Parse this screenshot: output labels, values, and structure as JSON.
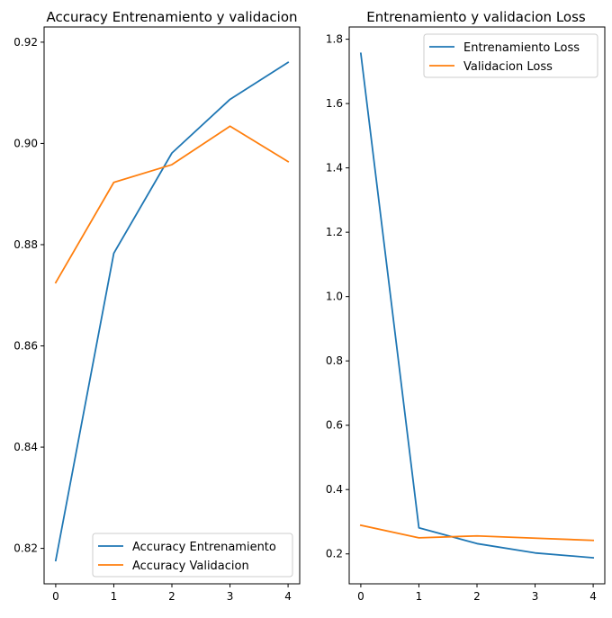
{
  "colors": {
    "series_1": "#1f77b4",
    "series_2": "#ff7f0e",
    "axis": "#000000",
    "legend_border": "#cccccc",
    "background": "#ffffff"
  },
  "chart_data": [
    {
      "type": "line",
      "title": "Accuracy Entrenamiento y validacion",
      "xlabel": "",
      "ylabel": "",
      "x": [
        0,
        1,
        2,
        3,
        4
      ],
      "xticks": [
        "0",
        "1",
        "2",
        "3",
        "4"
      ],
      "yticks": [
        "0.82",
        "0.84",
        "0.86",
        "0.88",
        "0.90",
        "0.92"
      ],
      "xlim": [
        -0.2,
        4.2
      ],
      "ylim": [
        0.813,
        0.923
      ],
      "grid": false,
      "legend_position": "lower-right",
      "series": [
        {
          "name": "Accuracy Entrenamiento",
          "values": [
            0.8176,
            0.8783,
            0.8981,
            0.9087,
            0.916
          ]
        },
        {
          "name": "Accuracy Validacion",
          "values": [
            0.8725,
            0.8923,
            0.8958,
            0.9034,
            0.8964
          ]
        }
      ]
    },
    {
      "type": "line",
      "title": "Entrenamiento y validacion Loss",
      "xlabel": "",
      "ylabel": "",
      "x": [
        0,
        1,
        2,
        3,
        4
      ],
      "xticks": [
        "0",
        "1",
        "2",
        "3",
        "4"
      ],
      "yticks": [
        "0.2",
        "0.4",
        "0.6",
        "0.8",
        "1.0",
        "1.2",
        "1.4",
        "1.6",
        "1.8"
      ],
      "xlim": [
        -0.2,
        4.2
      ],
      "ylim": [
        0.107,
        1.838
      ],
      "grid": false,
      "legend_position": "upper-right",
      "series": [
        {
          "name": "Entrenamiento Loss",
          "values": [
            1.756,
            0.281,
            0.232,
            0.203,
            0.188
          ]
        },
        {
          "name": "Validacion Loss",
          "values": [
            0.289,
            0.25,
            0.256,
            0.249,
            0.242
          ]
        }
      ]
    }
  ]
}
